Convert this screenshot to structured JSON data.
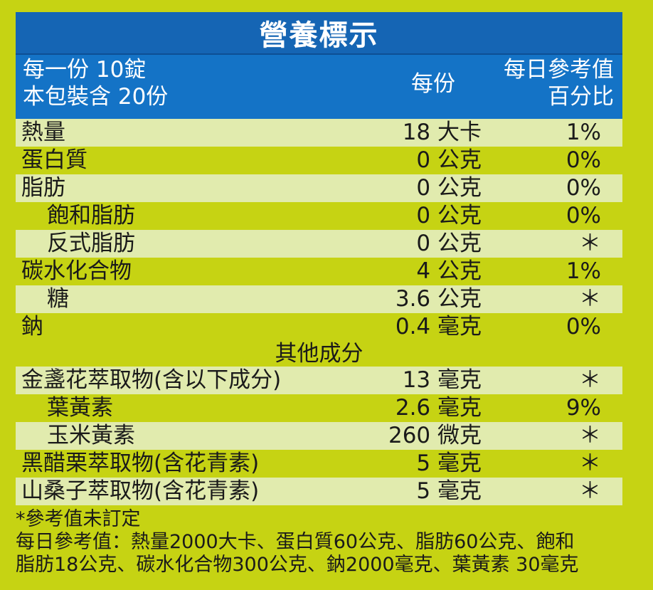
{
  "title": "營養標示",
  "header": {
    "serving_size": "每一份 10錠",
    "servings_per_package": "本包裝含 20份",
    "per_serving": "每份",
    "daily_value_line1": "每日參考值",
    "daily_value_line2": "百分比"
  },
  "nutrients": [
    {
      "name": "熱量",
      "amount": "18 大卡",
      "percent": "1%"
    },
    {
      "name": "蛋白質",
      "amount": "0 公克",
      "percent": "0%"
    },
    {
      "name": "脂肪",
      "amount": "0 公克",
      "percent": "0%"
    },
    {
      "name": "飽和脂肪",
      "amount": "0 公克",
      "percent": "0%"
    },
    {
      "name": "反式脂肪",
      "amount": "0 公克",
      "percent": "＊"
    },
    {
      "name": "碳水化合物",
      "amount": "4 公克",
      "percent": "1%"
    },
    {
      "name": "糖",
      "amount": "3.6 公克",
      "percent": "＊"
    },
    {
      "name": "鈉",
      "amount": "0.4 毫克",
      "percent": "0%"
    }
  ],
  "other_section_title": "其他成分",
  "other_ingredients": [
    {
      "name": "金盞花萃取物(含以下成分)",
      "amount": "13 毫克",
      "percent": "＊"
    },
    {
      "name": "葉黃素",
      "amount": "2.6 毫克",
      "percent": "9%"
    },
    {
      "name": "玉米黃素",
      "amount": "260 微克",
      "percent": "＊"
    },
    {
      "name": "黑醋栗萃取物(含花青素)",
      "amount": "5 毫克",
      "percent": "＊"
    },
    {
      "name": "山桑子萃取物(含花青素)",
      "amount": "5 毫克",
      "percent": "＊"
    }
  ],
  "notes": {
    "line1": "*參考值未訂定",
    "line2": "每日參考值：熱量2000大卡、蛋白質60公克、脂肪60公克、飽和",
    "line3": "脂肪18公克、碳水化合物300公克、鈉2000毫克、葉黃素 30毫克"
  }
}
